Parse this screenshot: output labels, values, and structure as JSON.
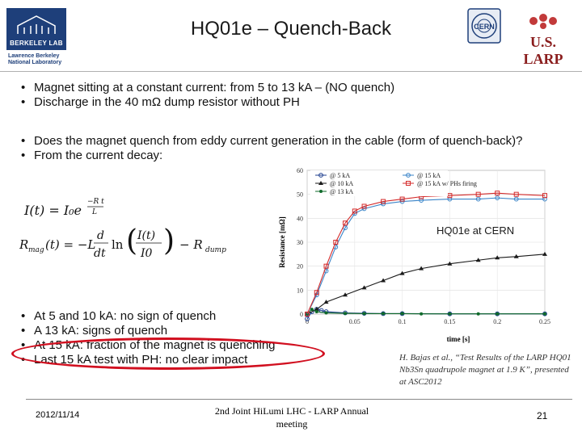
{
  "title": "HQ01e – Quench-Back",
  "logos": {
    "berkeley": "BERKELEY LAB",
    "lbnl_line1": "Lawrence Berkeley",
    "lbnl_line2": "National Laboratory",
    "cern": "CERN",
    "larp": "U.S. LARP"
  },
  "bullets_top": [
    "Magnet sitting at a constant current: from 5 to 13 kA – (NO quench)",
    "Discharge in the 40 mΩ dump resistor without PH"
  ],
  "bullets_mid": [
    "Does the magnet quench from eddy current generation in the cable (form of quench-back)?",
    "From the current decay:"
  ],
  "bullets_bottom": [
    "At 5 and 10 kA: no sign of quench",
    "A 13 kA: signs of quench",
    "At 15 kA:  fraction of the magnet is quenching",
    "Last 15 kA test with PH: no clear impact"
  ],
  "chart_label": "HQ01e at CERN",
  "citation": "H. Bajas et al., “Test Results of the LARP HQ01 Nb3Sn quadrupole magnet at 1.9 K”, presented at ASC2012",
  "footer": {
    "date": "2012/11/14",
    "conference": "2nd Joint HiLumi LHC - LARP Annual meeting",
    "page": "21"
  },
  "colors": {
    "berkeley_blue": "#1e3f7a",
    "larp_red": "#8a1d1d",
    "highlight_red": "#d10f1f",
    "series_5ka": "#1f3f8f",
    "series_10ka": "#1a1a1a",
    "series_13ka": "#0f6a2a",
    "series_15ka": "#3a84c8",
    "series_15ka_ph": "#d42a2a"
  },
  "chart_data": {
    "type": "line",
    "xlabel": "time [s]",
    "ylabel": "Resistance [mΩ]",
    "xlim": [
      0,
      0.25
    ],
    "ylim": [
      0,
      60
    ],
    "xticks": [
      "0",
      "0.05",
      "0.1",
      "0.15",
      "0.2",
      "0.25"
    ],
    "yticks": [
      "0",
      "10",
      "20",
      "30",
      "40",
      "50",
      "60"
    ],
    "legend_placement": "top",
    "series": [
      {
        "name": "@ 5 kA",
        "marker": "circle",
        "color": "#1f3f8f",
        "x": [
          0,
          0.005,
          0.01,
          0.015,
          0.02,
          0.04,
          0.06,
          0.08,
          0.1,
          0.15,
          0.2,
          0.25
        ],
        "y": [
          -2,
          1,
          2,
          1.5,
          1,
          0.5,
          0.3,
          0.2,
          0.2,
          0.1,
          0.1,
          0.1
        ]
      },
      {
        "name": "@ 10 kA",
        "marker": "triangle",
        "color": "#1a1a1a",
        "x": [
          0,
          0.01,
          0.02,
          0.04,
          0.06,
          0.08,
          0.1,
          0.12,
          0.15,
          0.18,
          0.2,
          0.22,
          0.25
        ],
        "y": [
          0,
          2,
          5,
          8,
          11,
          14,
          17,
          19,
          21,
          22.5,
          23.5,
          24,
          25
        ]
      },
      {
        "name": "@ 13 kA",
        "marker": "dot",
        "color": "#0f6a2a",
        "x": [
          0,
          0.005,
          0.01,
          0.02,
          0.04,
          0.06,
          0.08,
          0.1,
          0.12,
          0.15,
          0.18,
          0.2,
          0.25
        ],
        "y": [
          0,
          2,
          1,
          0.5,
          0.3,
          0.2,
          0.2,
          0.2,
          0.1,
          0.1,
          0.1,
          0.1,
          0.1
        ]
      },
      {
        "name": "@ 15 kA",
        "marker": "circle",
        "color": "#3a84c8",
        "x": [
          0,
          0.01,
          0.02,
          0.03,
          0.04,
          0.05,
          0.06,
          0.08,
          0.1,
          0.12,
          0.15,
          0.18,
          0.2,
          0.22,
          0.25
        ],
        "y": [
          0,
          8,
          18,
          28,
          36,
          42,
          44,
          46,
          47,
          47.5,
          48,
          48,
          48.5,
          48,
          48
        ]
      },
      {
        "name": "@ 15 kA w/ PHs firing",
        "marker": "square",
        "color": "#d42a2a",
        "x": [
          0,
          0.01,
          0.02,
          0.03,
          0.04,
          0.05,
          0.06,
          0.08,
          0.1,
          0.12,
          0.15,
          0.18,
          0.2,
          0.22,
          0.25
        ],
        "y": [
          0,
          9,
          20,
          30,
          38,
          43,
          45,
          47,
          48,
          49,
          49.5,
          50,
          50.5,
          50,
          49.5
        ]
      }
    ]
  }
}
